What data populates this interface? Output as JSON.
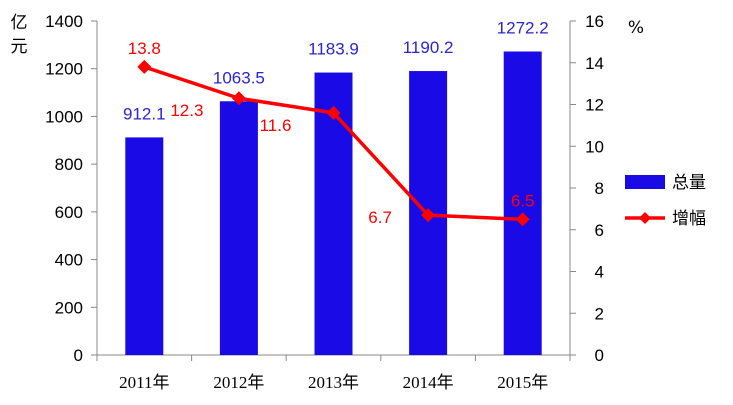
{
  "chart_data": {
    "type": "bar+line",
    "categories": [
      "2011年",
      "2012年",
      "2013年",
      "2014年",
      "2015年"
    ],
    "series": [
      {
        "name": "总量",
        "type": "bar",
        "axis": "left",
        "values": [
          912.1,
          1063.5,
          1183.9,
          1190.2,
          1272.2
        ],
        "labels": [
          "912.1",
          "1063.5",
          "1183.9",
          "1190.2",
          "1272.2"
        ],
        "color": "#1a0be6",
        "label_color": "#2a24d6"
      },
      {
        "name": "增幅",
        "type": "line",
        "axis": "right",
        "values": [
          13.8,
          12.3,
          11.6,
          6.7,
          6.5
        ],
        "labels": [
          "13.8",
          "12.3",
          "11.6",
          "6.7",
          "6.5"
        ],
        "color": "#ff0000",
        "label_color": "#ff0000",
        "marker": "diamond"
      }
    ],
    "y_left": {
      "unit_label": "亿元",
      "range": [
        0,
        1400
      ],
      "ticks": [
        "0",
        "200",
        "400",
        "600",
        "800",
        "1000",
        "1200",
        "1400"
      ]
    },
    "y_right": {
      "unit_label": "%",
      "range": [
        0,
        16
      ],
      "ticks": [
        "0",
        "2",
        "4",
        "6",
        "8",
        "10",
        "12",
        "14",
        "16"
      ]
    },
    "grid": false,
    "legend_position": "right"
  }
}
